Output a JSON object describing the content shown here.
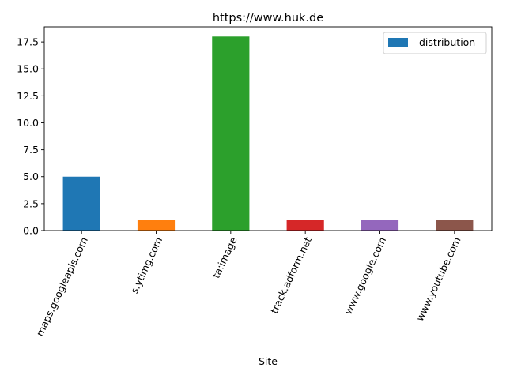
{
  "chart_data": {
    "type": "bar",
    "title": "https://www.huk.de",
    "xlabel": "Site",
    "ylabel": "",
    "categories": [
      "maps.googleapis.com",
      "s.ytimg.com",
      "ta:image",
      "track.adform.net",
      "www.google.com",
      "www.youtube.com"
    ],
    "series": [
      {
        "name": "distribution",
        "values": [
          5,
          1,
          18,
          1,
          1,
          1
        ]
      }
    ],
    "bar_colors": [
      "#1f77b4",
      "#ff7f0e",
      "#2ca02c",
      "#d62728",
      "#9467bd",
      "#8c564b"
    ],
    "legend_color": "#1f77b4",
    "ylim": [
      0,
      18.9
    ],
    "yticks": [
      0.0,
      2.5,
      5.0,
      7.5,
      10.0,
      12.5,
      15.0,
      17.5
    ],
    "ytick_labels": [
      "0.0",
      "2.5",
      "5.0",
      "7.5",
      "10.0",
      "12.5",
      "15.0",
      "17.5"
    ],
    "grid": false,
    "legend_position": "top-right",
    "xtick_rotation": 65
  }
}
